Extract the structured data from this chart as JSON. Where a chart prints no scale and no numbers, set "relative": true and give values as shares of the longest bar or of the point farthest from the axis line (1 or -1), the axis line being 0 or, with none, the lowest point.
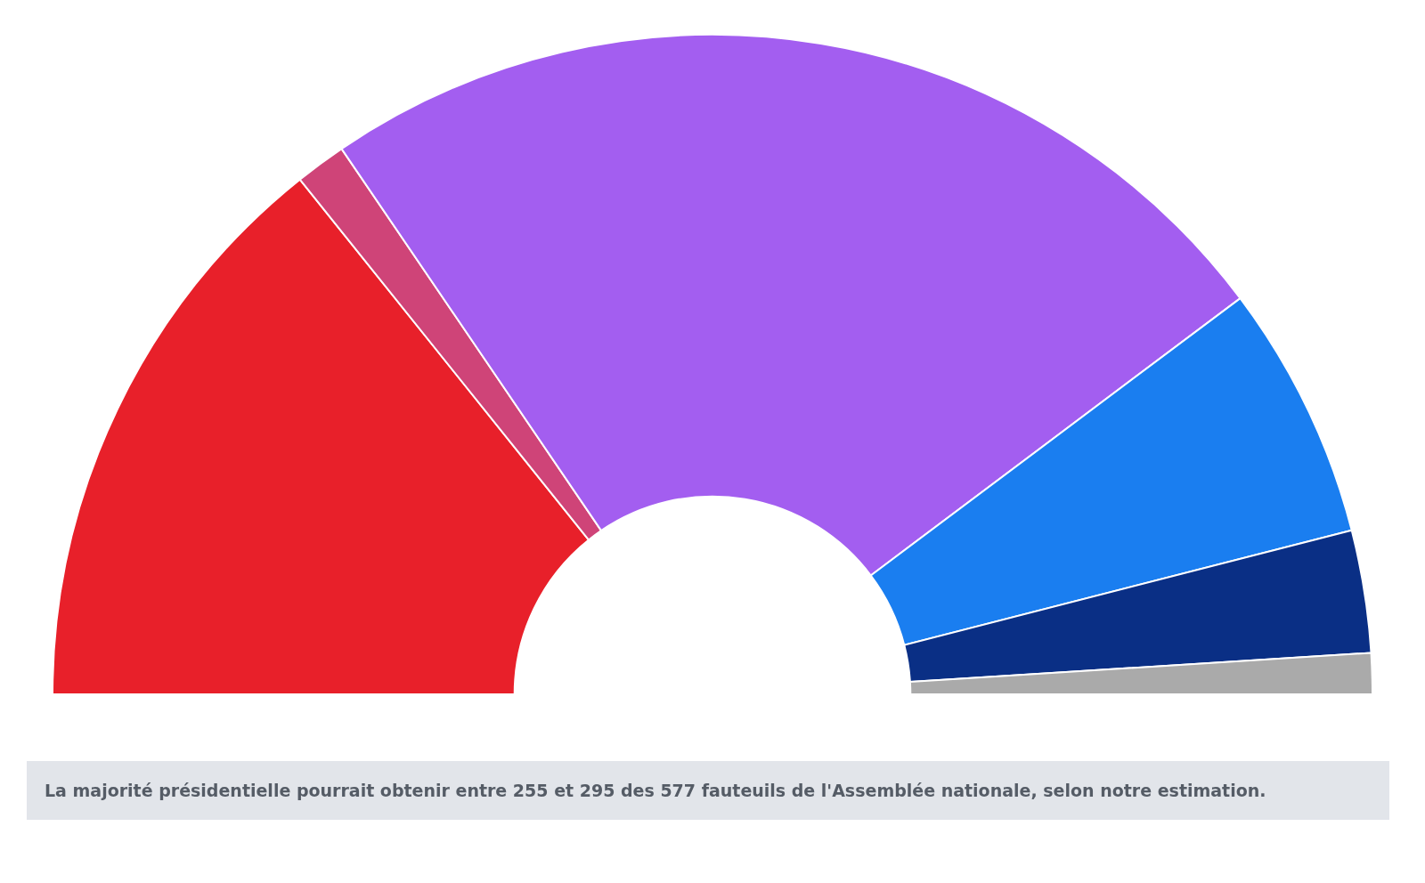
{
  "chart_data": {
    "type": "donut",
    "relative": true,
    "legend": false,
    "categories": [
      null,
      null,
      null,
      null,
      null,
      null
    ],
    "values": [
      28.5,
      2.5,
      48.5,
      12.5,
      6,
      2
    ],
    "colors": [
      "#e8202a",
      "#cf4478",
      "#a35ef0",
      "#1a7ef0",
      "#0a2f85",
      "#aaaaaa"
    ],
    "annotations": [
      "La majorité présidentielle pourrait obtenir entre 255 et 295 des 577 fauteuils de l'Assemblée nationale, selon notre estimation."
    ]
  }
}
